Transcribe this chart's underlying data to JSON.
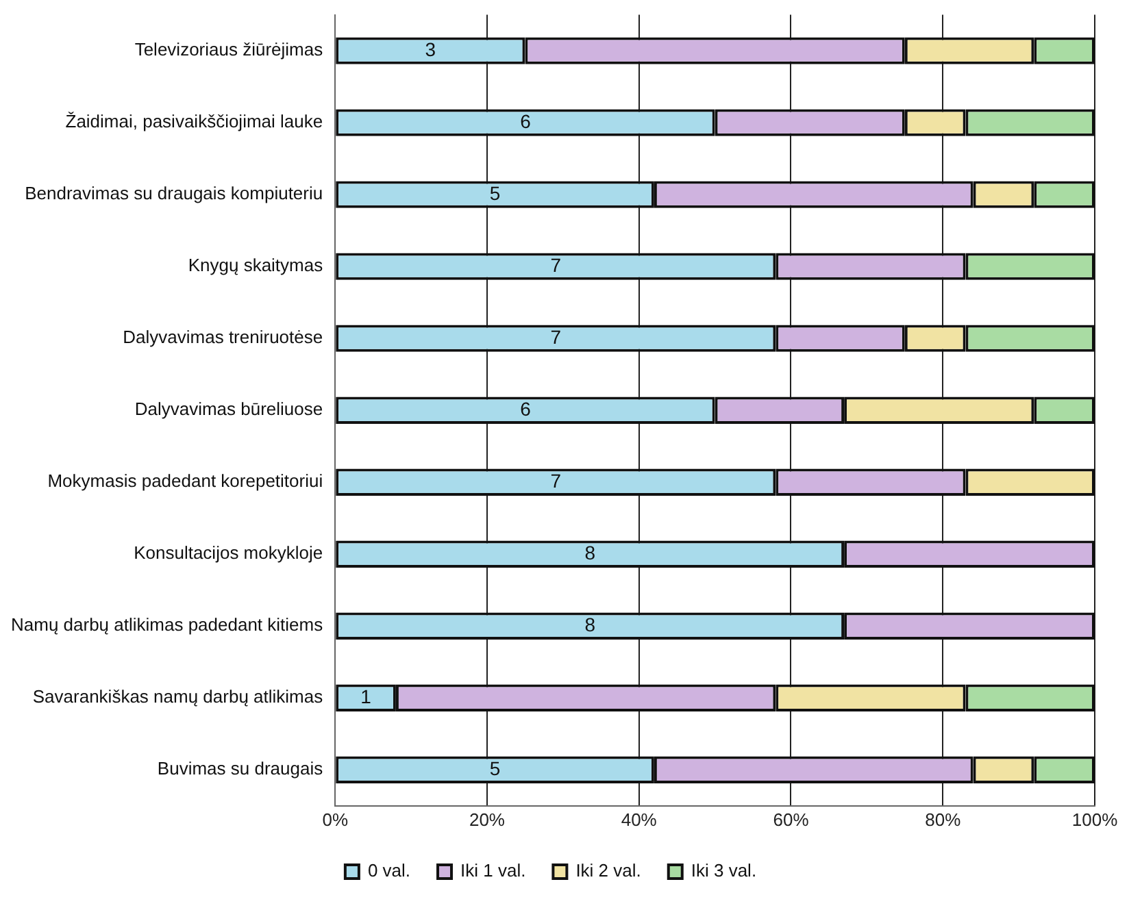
{
  "chart_data": {
    "type": "bar",
    "orientation": "horizontal",
    "stacked": true,
    "categories": [
      "Televizoriaus žiūrėjimas",
      "Žaidimai, pasivaikščiojimai lauke",
      "Bendravimas su draugais kompiuteriu",
      "Knygų skaitymas",
      "Dalyvavimas treniruotėse",
      "Dalyvavimas būreliuose",
      "Mokymasis padedant korepetitoriui",
      "Konsultacijos mokykloje",
      "Namų darbų atlikimas padedant kitiems",
      "Savarankiškas namų darbų atlikimas",
      "Buvimas su draugais"
    ],
    "series": [
      {
        "name": "0 val.",
        "color": "#a9dbeb",
        "values": [
          25,
          50,
          42,
          58,
          58,
          50,
          58,
          67,
          67,
          8,
          42
        ]
      },
      {
        "name": "Iki 1 val.",
        "color": "#cfb3df",
        "values": [
          50,
          25,
          42,
          25,
          17,
          17,
          25,
          33,
          33,
          50,
          42
        ]
      },
      {
        "name": "Iki 2 val.",
        "color": "#f1e3a3",
        "values": [
          17,
          8,
          8,
          0,
          8,
          25,
          17,
          0,
          0,
          25,
          8
        ]
      },
      {
        "name": "Iki 3 val.",
        "color": "#a9dca3",
        "values": [
          8,
          17,
          8,
          17,
          17,
          8,
          0,
          0,
          0,
          17,
          8
        ]
      }
    ],
    "xlim": [
      0,
      100
    ],
    "xticks": [
      {
        "value": 0,
        "label": "0%"
      },
      {
        "value": 20,
        "label": "20%"
      },
      {
        "value": 40,
        "label": "40%"
      },
      {
        "value": 60,
        "label": "60%"
      },
      {
        "value": 80,
        "label": "80%"
      },
      {
        "value": 100,
        "label": "100%"
      }
    ],
    "grid": "x",
    "legend": "bottom",
    "annotations": [
      "3",
      "6",
      "5",
      "7",
      "7",
      "6",
      "7",
      "8",
      "8",
      "1",
      "5"
    ]
  }
}
